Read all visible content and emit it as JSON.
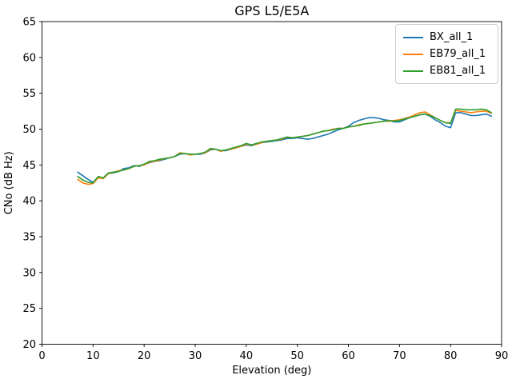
{
  "figure": {
    "background": "#ffffff",
    "frame_color": "#000000"
  },
  "chart_data": {
    "type": "line",
    "title": "GPS L5/E5A",
    "xlabel": "Elevation (deg)",
    "ylabel": "CNo (dB Hz)",
    "xlim": [
      0,
      90
    ],
    "ylim": [
      20,
      65
    ],
    "xticks": [
      0,
      10,
      20,
      30,
      40,
      50,
      60,
      70,
      80,
      90
    ],
    "yticks": [
      20,
      25,
      30,
      35,
      40,
      45,
      50,
      55,
      60,
      65
    ],
    "grid": false,
    "legend": {
      "position": "upper right"
    },
    "x": [
      7,
      8,
      9,
      10,
      11,
      12,
      13,
      14,
      15,
      16,
      17,
      18,
      19,
      20,
      21,
      22,
      23,
      24,
      25,
      26,
      27,
      28,
      29,
      30,
      31,
      32,
      33,
      34,
      35,
      36,
      37,
      38,
      39,
      40,
      41,
      42,
      43,
      44,
      45,
      46,
      47,
      48,
      49,
      50,
      51,
      52,
      53,
      54,
      55,
      56,
      57,
      58,
      59,
      60,
      61,
      62,
      63,
      64,
      65,
      66,
      67,
      68,
      69,
      70,
      71,
      72,
      73,
      74,
      75,
      76,
      77,
      78,
      79,
      80,
      81,
      82,
      83,
      84,
      85,
      86,
      87,
      88
    ],
    "series": [
      {
        "name": "BX_all_1",
        "color": "#1f77b4",
        "values": [
          44.0,
          43.5,
          43.0,
          42.6,
          43.3,
          43.2,
          43.8,
          43.9,
          44.1,
          44.5,
          44.6,
          44.9,
          44.8,
          45.1,
          45.3,
          45.5,
          45.6,
          45.8,
          46.0,
          46.2,
          46.5,
          46.6,
          46.5,
          46.5,
          46.5,
          46.7,
          47.1,
          47.2,
          47.0,
          47.0,
          47.2,
          47.4,
          47.6,
          47.8,
          47.7,
          47.9,
          48.1,
          48.2,
          48.3,
          48.4,
          48.5,
          48.7,
          48.7,
          48.8,
          48.7,
          48.6,
          48.7,
          48.9,
          49.1,
          49.3,
          49.6,
          49.9,
          50.1,
          50.4,
          50.9,
          51.2,
          51.4,
          51.6,
          51.6,
          51.5,
          51.3,
          51.2,
          51.0,
          51.0,
          51.3,
          51.6,
          51.8,
          52.0,
          52.1,
          51.8,
          51.3,
          50.9,
          50.4,
          50.2,
          52.3,
          52.3,
          52.1,
          51.9,
          51.9,
          52.0,
          52.1,
          51.8
        ]
      },
      {
        "name": "EB79_all_1",
        "color": "#ff7f0e",
        "values": [
          43.0,
          42.5,
          42.3,
          42.4,
          43.2,
          43.1,
          43.8,
          44.0,
          44.2,
          44.3,
          44.5,
          44.8,
          44.9,
          45.0,
          45.4,
          45.5,
          45.7,
          45.9,
          46.0,
          46.2,
          46.7,
          46.6,
          46.4,
          46.5,
          46.6,
          46.7,
          47.2,
          47.2,
          46.9,
          47.1,
          47.2,
          47.4,
          47.6,
          47.9,
          47.8,
          47.9,
          48.1,
          48.3,
          48.4,
          48.5,
          48.6,
          48.9,
          48.8,
          48.9,
          49.0,
          49.1,
          49.3,
          49.5,
          49.7,
          49.8,
          50.0,
          50.1,
          50.1,
          50.3,
          50.4,
          50.6,
          50.7,
          50.8,
          50.9,
          51.0,
          51.1,
          51.1,
          51.2,
          51.3,
          51.5,
          51.7,
          52.0,
          52.3,
          52.4,
          52.0,
          51.6,
          51.2,
          50.9,
          50.9,
          52.6,
          52.5,
          52.4,
          52.3,
          52.4,
          52.5,
          52.5,
          52.2
        ]
      },
      {
        "name": "EB81_all_1",
        "color": "#2ca02c",
        "values": [
          43.4,
          42.9,
          42.6,
          42.5,
          43.4,
          43.2,
          43.9,
          44.0,
          44.1,
          44.3,
          44.5,
          44.8,
          44.9,
          45.1,
          45.5,
          45.6,
          45.8,
          45.9,
          46.0,
          46.2,
          46.6,
          46.6,
          46.5,
          46.5,
          46.6,
          46.8,
          47.3,
          47.2,
          47.0,
          47.1,
          47.3,
          47.5,
          47.7,
          48.0,
          47.8,
          48.0,
          48.2,
          48.3,
          48.4,
          48.5,
          48.7,
          48.9,
          48.8,
          48.9,
          49.0,
          49.1,
          49.3,
          49.5,
          49.7,
          49.8,
          49.9,
          50.1,
          50.1,
          50.3,
          50.4,
          50.5,
          50.7,
          50.8,
          50.9,
          51.0,
          51.1,
          51.2,
          51.1,
          51.2,
          51.4,
          51.6,
          51.8,
          52.0,
          52.1,
          51.9,
          51.6,
          51.2,
          50.9,
          50.8,
          52.8,
          52.8,
          52.7,
          52.7,
          52.7,
          52.8,
          52.7,
          52.3
        ]
      }
    ]
  }
}
